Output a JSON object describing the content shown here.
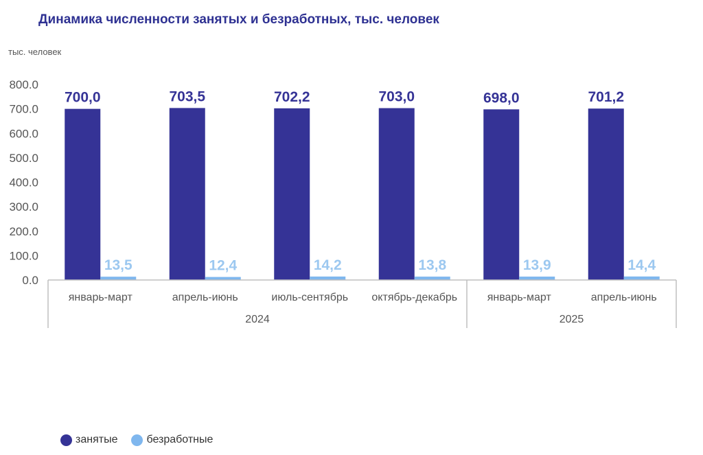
{
  "chart_data": {
    "type": "bar",
    "title": "Динамика численности занятых и безработных, тыс. человек",
    "ylabel": "тыс. человек",
    "xlabel": "",
    "ylim": [
      0,
      800
    ],
    "yticks": [
      "0.0",
      "100.0",
      "200.0",
      "300.0",
      "400.0",
      "500.0",
      "600.0",
      "700.0",
      "800.0"
    ],
    "categories": [
      "январь-март",
      "апрель-июнь",
      "июль-сентябрь",
      "октябрь-декабрь",
      "январь-март",
      "апрель-июнь"
    ],
    "groups": [
      {
        "label": "2024",
        "count": 4
      },
      {
        "label": "2025",
        "count": 2
      }
    ],
    "series": [
      {
        "name": "занятые",
        "color": "#353396",
        "values": [
          700.0,
          703.5,
          702.2,
          703.0,
          698.0,
          701.2
        ],
        "labels": [
          "700,0",
          "703,5",
          "702,2",
          "703,0",
          "698,0",
          "701,2"
        ]
      },
      {
        "name": "безработные",
        "color": "#7fb7ee",
        "values": [
          13.5,
          12.4,
          14.2,
          13.8,
          13.9,
          14.4
        ],
        "labels": [
          "13,5",
          "12,4",
          "14,2",
          "13,8",
          "13,9",
          "14,4"
        ]
      }
    ],
    "legend_position": "bottom-left",
    "grid": false
  }
}
